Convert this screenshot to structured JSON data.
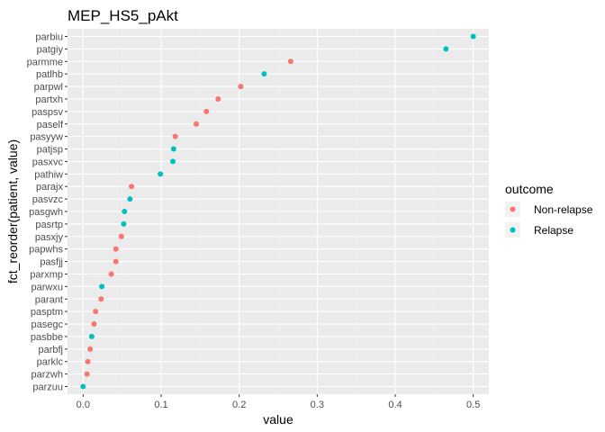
{
  "chart_data": {
    "type": "scatter",
    "title": "MEP_HS5_pAkt",
    "xlabel": "value",
    "ylabel": "fct_reorder(patient, value)",
    "xlim": [
      -0.02,
      0.52
    ],
    "x_ticks": [
      0.0,
      0.1,
      0.2,
      0.3,
      0.4,
      0.5
    ],
    "x_tick_labels": [
      "0.0",
      "0.1",
      "0.2",
      "0.3",
      "0.4",
      "0.5"
    ],
    "grid": true,
    "legend": {
      "title": "outcome",
      "position": "right",
      "entries": [
        {
          "label": "Non-relapse",
          "color": "#F8766D"
        },
        {
          "label": "Relapse",
          "color": "#00BFC4"
        }
      ]
    },
    "points": [
      {
        "patient": "parzuu",
        "value": 0.0,
        "outcome": "Relapse"
      },
      {
        "patient": "parzwh",
        "value": 0.005,
        "outcome": "Non-relapse"
      },
      {
        "patient": "parklc",
        "value": 0.006,
        "outcome": "Non-relapse"
      },
      {
        "patient": "parbfj",
        "value": 0.009,
        "outcome": "Non-relapse"
      },
      {
        "patient": "pasbbe",
        "value": 0.011,
        "outcome": "Relapse"
      },
      {
        "patient": "pasegc",
        "value": 0.014,
        "outcome": "Non-relapse"
      },
      {
        "patient": "pasptm",
        "value": 0.016,
        "outcome": "Non-relapse"
      },
      {
        "patient": "parant",
        "value": 0.023,
        "outcome": "Non-relapse"
      },
      {
        "patient": "parwxu",
        "value": 0.024,
        "outcome": "Relapse"
      },
      {
        "patient": "parxmp",
        "value": 0.036,
        "outcome": "Non-relapse"
      },
      {
        "patient": "pasfjj",
        "value": 0.042,
        "outcome": "Non-relapse"
      },
      {
        "patient": "papwhs",
        "value": 0.042,
        "outcome": "Non-relapse"
      },
      {
        "patient": "pasxjy",
        "value": 0.049,
        "outcome": "Non-relapse"
      },
      {
        "patient": "pasrtp",
        "value": 0.052,
        "outcome": "Relapse"
      },
      {
        "patient": "pasgwh",
        "value": 0.053,
        "outcome": "Relapse"
      },
      {
        "patient": "pasvzc",
        "value": 0.06,
        "outcome": "Relapse"
      },
      {
        "patient": "parajx",
        "value": 0.062,
        "outcome": "Non-relapse"
      },
      {
        "patient": "pathiw",
        "value": 0.099,
        "outcome": "Relapse"
      },
      {
        "patient": "pasxvc",
        "value": 0.115,
        "outcome": "Relapse"
      },
      {
        "patient": "patjsp",
        "value": 0.116,
        "outcome": "Relapse"
      },
      {
        "patient": "pasyyw",
        "value": 0.118,
        "outcome": "Non-relapse"
      },
      {
        "patient": "paself",
        "value": 0.145,
        "outcome": "Non-relapse"
      },
      {
        "patient": "paspsv",
        "value": 0.158,
        "outcome": "Non-relapse"
      },
      {
        "patient": "partxh",
        "value": 0.173,
        "outcome": "Non-relapse"
      },
      {
        "patient": "parpwl",
        "value": 0.202,
        "outcome": "Non-relapse"
      },
      {
        "patient": "patlhb",
        "value": 0.232,
        "outcome": "Relapse"
      },
      {
        "patient": "parmme",
        "value": 0.266,
        "outcome": "Non-relapse"
      },
      {
        "patient": "patgiy",
        "value": 0.465,
        "outcome": "Relapse"
      },
      {
        "patient": "parbiu",
        "value": 0.5,
        "outcome": "Relapse"
      }
    ]
  }
}
